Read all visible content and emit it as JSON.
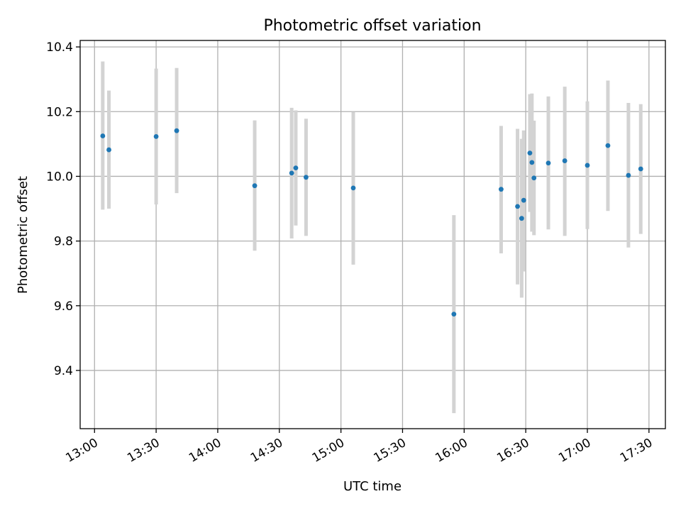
{
  "chart_data": {
    "type": "scatter",
    "title": "Photometric offset variation",
    "xlabel": "UTC time",
    "ylabel": "Photometric offset",
    "x_unit": "time of day (UTC)",
    "xlim": [
      "12:53",
      "17:38"
    ],
    "ylim": [
      9.22,
      10.42
    ],
    "x_ticks": [
      "13:00",
      "13:30",
      "14:00",
      "14:30",
      "15:00",
      "15:30",
      "16:00",
      "16:30",
      "17:00",
      "17:30"
    ],
    "y_ticks": [
      "9.4",
      "9.6",
      "9.8",
      "10.0",
      "10.2",
      "10.4"
    ],
    "grid": true,
    "legend": "none",
    "colors": {
      "points": "#1f77b4",
      "error_bars": "#d3d3d3",
      "grid": "#b0b0b0"
    },
    "points": [
      {
        "x": "13:04",
        "y": 10.125,
        "err_low": 9.897,
        "err_high": 10.355
      },
      {
        "x": "13:07",
        "y": 10.082,
        "err_low": 9.9,
        "err_high": 10.265
      },
      {
        "x": "13:30",
        "y": 10.123,
        "err_low": 9.913,
        "err_high": 10.333
      },
      {
        "x": "13:40",
        "y": 10.141,
        "err_low": 9.948,
        "err_high": 10.335
      },
      {
        "x": "14:18",
        "y": 9.971,
        "err_low": 9.77,
        "err_high": 10.173
      },
      {
        "x": "14:36",
        "y": 10.01,
        "err_low": 9.808,
        "err_high": 10.212
      },
      {
        "x": "14:38",
        "y": 10.026,
        "err_low": 9.848,
        "err_high": 10.204
      },
      {
        "x": "14:43",
        "y": 9.997,
        "err_low": 9.816,
        "err_high": 10.178
      },
      {
        "x": "15:06",
        "y": 9.964,
        "err_low": 9.727,
        "err_high": 10.199
      },
      {
        "x": "15:55",
        "y": 9.574,
        "err_low": 9.268,
        "err_high": 9.88
      },
      {
        "x": "16:18",
        "y": 9.96,
        "err_low": 9.762,
        "err_high": 10.156
      },
      {
        "x": "16:26",
        "y": 9.907,
        "err_low": 9.666,
        "err_high": 10.147
      },
      {
        "x": "16:28",
        "y": 9.87,
        "err_low": 9.625,
        "err_high": 10.116
      },
      {
        "x": "16:29",
        "y": 9.926,
        "err_low": 9.706,
        "err_high": 10.142
      },
      {
        "x": "16:32",
        "y": 10.072,
        "err_low": 9.89,
        "err_high": 10.254
      },
      {
        "x": "16:33",
        "y": 10.043,
        "err_low": 9.829,
        "err_high": 10.256
      },
      {
        "x": "16:34",
        "y": 9.995,
        "err_low": 9.818,
        "err_high": 10.172
      },
      {
        "x": "16:41",
        "y": 10.041,
        "err_low": 9.836,
        "err_high": 10.247
      },
      {
        "x": "16:49",
        "y": 10.048,
        "err_low": 9.816,
        "err_high": 10.277
      },
      {
        "x": "17:00",
        "y": 10.034,
        "err_low": 9.837,
        "err_high": 10.232
      },
      {
        "x": "17:10",
        "y": 10.095,
        "err_low": 9.893,
        "err_high": 10.296
      },
      {
        "x": "17:20",
        "y": 10.003,
        "err_low": 9.78,
        "err_high": 10.227
      },
      {
        "x": "17:26",
        "y": 10.023,
        "err_low": 9.822,
        "err_high": 10.223
      }
    ]
  }
}
